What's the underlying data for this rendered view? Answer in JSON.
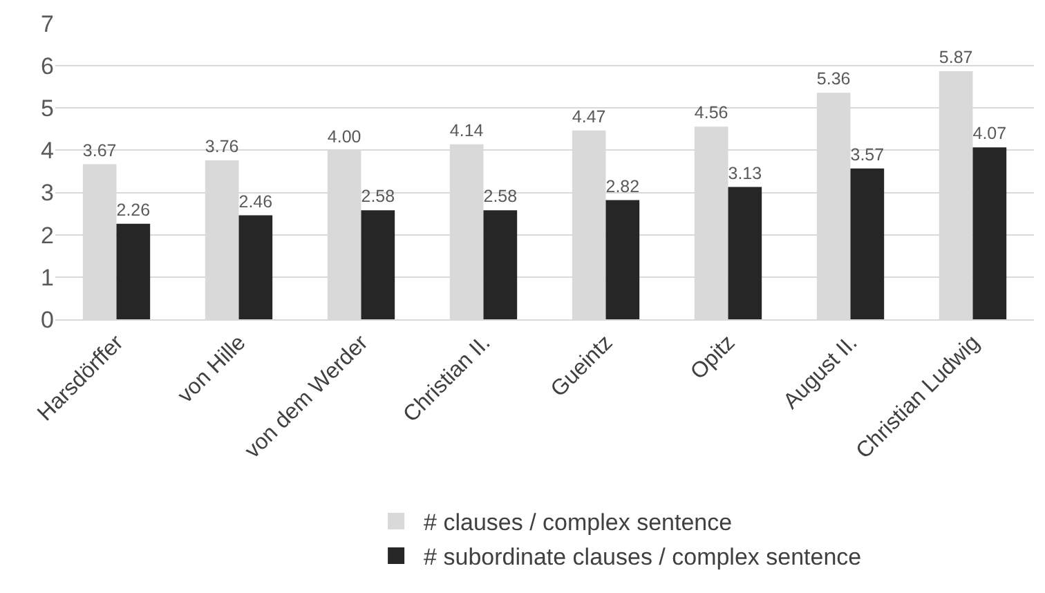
{
  "chart_data": {
    "type": "bar",
    "categories": [
      "Harsdörffer",
      "von Hille",
      "von dem Werder",
      "Christian II.",
      "Gueintz",
      "Opitz",
      "August II.",
      "Christian Ludwig"
    ],
    "series": [
      {
        "name": "# clauses / complex sentence",
        "color": "#d9d9d9",
        "values": [
          3.67,
          3.76,
          4.0,
          4.14,
          4.47,
          4.56,
          5.36,
          5.87
        ],
        "value_labels": [
          "3.67",
          "3.76",
          "4.00",
          "4.14",
          "4.47",
          "4.56",
          "5.36",
          "5.87"
        ]
      },
      {
        "name": "# subordinate clauses / complex sentence",
        "color": "#262626",
        "values": [
          2.26,
          2.46,
          2.58,
          2.58,
          2.82,
          3.13,
          3.57,
          4.07
        ],
        "value_labels": [
          "2.26",
          "2.46",
          "2.58",
          "2.58",
          "2.82",
          "3.13",
          "3.57",
          "4.07"
        ]
      }
    ],
    "ylim": [
      0,
      7
    ],
    "yticks": [
      0,
      1,
      2,
      3,
      4,
      5,
      6,
      7
    ],
    "grid": "y",
    "legend": "bottom"
  }
}
